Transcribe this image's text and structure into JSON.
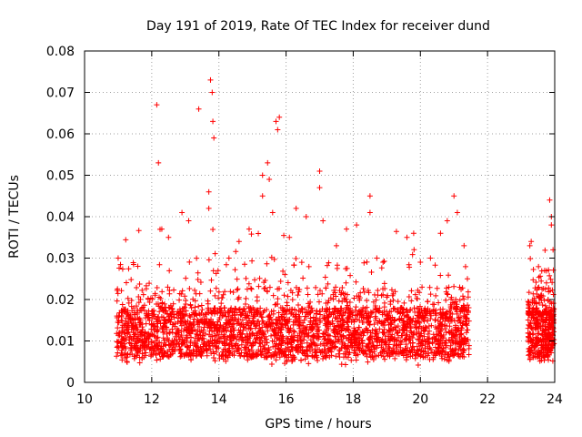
{
  "chart_data": {
    "type": "scatter",
    "title": "Day 191 of 2019, Rate Of TEC Index for receiver dund",
    "xlabel": "GPS time / hours",
    "ylabel": "ROTI / TECUs",
    "xlim": [
      10,
      24
    ],
    "ylim": [
      0,
      0.08
    ],
    "xticks": [
      10,
      12,
      14,
      16,
      18,
      20,
      22,
      24
    ],
    "xtick_labels": [
      "10",
      "12",
      "14",
      "16",
      "18",
      "20",
      "22",
      "24"
    ],
    "yticks": [
      0,
      0.01,
      0.02,
      0.03,
      0.04,
      0.05,
      0.06,
      0.07,
      0.08
    ],
    "ytick_labels": [
      "0",
      "0.01",
      "0.02",
      "0.03",
      "0.04",
      "0.05",
      "0.06",
      "0.07",
      "0.08"
    ],
    "grid": true,
    "legend": "none",
    "marker": "plus",
    "color": "#ff0000",
    "series": [
      {
        "points": [
          [
            11.0,
            0.03
          ],
          [
            12.15,
            0.067
          ],
          [
            12.2,
            0.053
          ],
          [
            12.3,
            0.037
          ],
          [
            12.5,
            0.035
          ],
          [
            12.9,
            0.041
          ],
          [
            13.1,
            0.039
          ],
          [
            13.4,
            0.066
          ],
          [
            13.75,
            0.073
          ],
          [
            13.8,
            0.07
          ],
          [
            13.82,
            0.063
          ],
          [
            13.85,
            0.059
          ],
          [
            13.7,
            0.046
          ],
          [
            13.7,
            0.042
          ],
          [
            14.3,
            0.03
          ],
          [
            14.6,
            0.034
          ],
          [
            14.9,
            0.037
          ],
          [
            15.3,
            0.05
          ],
          [
            15.45,
            0.053
          ],
          [
            15.5,
            0.049
          ],
          [
            15.7,
            0.063
          ],
          [
            15.75,
            0.061
          ],
          [
            15.8,
            0.064
          ],
          [
            15.3,
            0.045
          ],
          [
            15.6,
            0.041
          ],
          [
            16.3,
            0.042
          ],
          [
            16.1,
            0.035
          ],
          [
            16.6,
            0.04
          ],
          [
            17.0,
            0.051
          ],
          [
            17.0,
            0.047
          ],
          [
            17.1,
            0.039
          ],
          [
            17.5,
            0.033
          ],
          [
            17.8,
            0.037
          ],
          [
            18.1,
            0.038
          ],
          [
            18.5,
            0.045
          ],
          [
            18.5,
            0.041
          ],
          [
            19.6,
            0.035
          ],
          [
            19.8,
            0.036
          ],
          [
            20.0,
            0.029
          ],
          [
            20.3,
            0.03
          ],
          [
            20.6,
            0.036
          ],
          [
            20.8,
            0.039
          ],
          [
            21.0,
            0.045
          ],
          [
            21.1,
            0.041
          ],
          [
            21.3,
            0.033
          ],
          [
            21.4,
            0.025
          ],
          [
            23.3,
            0.034
          ],
          [
            23.7,
            0.027
          ],
          [
            23.85,
            0.044
          ],
          [
            23.9,
            0.04
          ],
          [
            23.9,
            0.038
          ],
          [
            23.95,
            0.032
          ]
        ]
      }
    ]
  }
}
